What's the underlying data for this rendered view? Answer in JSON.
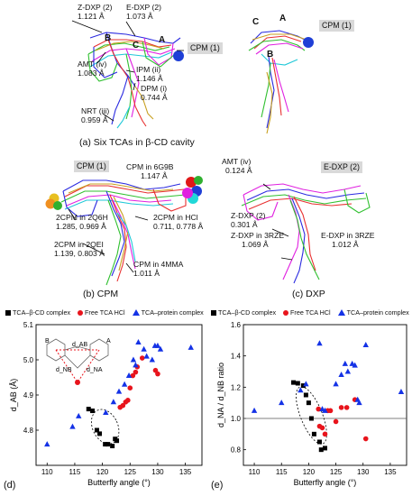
{
  "panel_a": {
    "caption": "(a) Six TCAs in β-CD cavity",
    "labels": {
      "zdxp": "Z-DXP (2)",
      "zdxp_val": "1.121 Å",
      "edxp": "E-DXP (2)",
      "edxp_val": "1.073 Å",
      "cpm_box": "CPM (1)",
      "ring_b": "B",
      "ring_c": "C",
      "ring_a": "A",
      "amt": "AMT (iv)",
      "amt_val": "1.083 Å",
      "ipm": "IPM (ii)",
      "ipm_val": "1.146 Å",
      "dpm": "DPM (i)",
      "dpm_val": "0.744 Å",
      "nrt": "NRT (iii)",
      "nrt_val": "0.959 Å"
    }
  },
  "panel_a2": {
    "cpm_box": "CPM (1)",
    "ring_c": "C",
    "ring_a": "A",
    "ring_b": "B"
  },
  "panel_b": {
    "caption": "(b) CPM",
    "cpm_box": "CPM (1)",
    "cpm6g9b": "CPM in 6G9B",
    "cpm6g9b_val": "1.147 Å",
    "q6h": "2CPM in 2Q6H",
    "q6h_val": "1.285, 0.969 Å",
    "hcl": "2CPM in HCl",
    "hcl_val": "0.711, 0.778 Å",
    "qei": "2CPM in 2QEI",
    "qei_val": "1.139, 0.803 Å",
    "mma": "CPM in 4MMA",
    "mma_val": "1.011 Å"
  },
  "panel_c": {
    "caption": "(c) DXP",
    "amt": "AMT (iv)",
    "amt_val": "0.124 Å",
    "edxp_box": "E-DXP (2)",
    "zdxp": "Z-DXP (2)",
    "zdxp_val": "0.301 Å",
    "zrze": "Z-DXP in 3RZE",
    "zrze_val": "1.069 Å",
    "erze": "E-DXP in 3RZE",
    "erze_val": "1.012 Å"
  },
  "colors": {
    "black_sq": "#000000",
    "red_dot": "#e8141c",
    "blue_tri": "#1432e6",
    "cpm_sphere": "#1f3fd6"
  },
  "chart_data": [
    {
      "type": "scatter",
      "panel": "(d)",
      "xlabel": "Butterfly angle (°)",
      "ylabel": "d_AB (Å)",
      "xlim": [
        108,
        138
      ],
      "ylim": [
        4.7,
        5.1
      ],
      "xticks": [
        "110",
        "115",
        "120",
        "125",
        "130",
        "135"
      ],
      "yticks": [
        "4.8",
        "4.9",
        "5.0",
        "5.1"
      ],
      "legend_position": "top",
      "inset_labels": {
        "b": "B",
        "a": "A",
        "dab": "d_AB",
        "dnb": "d_NB",
        "dna": "d_NA"
      },
      "series": [
        {
          "name": "TCA–β-CD complex",
          "marker": "square",
          "color": "#000000",
          "points": [
            [
              117.5,
              4.86
            ],
            [
              118.2,
              4.855
            ],
            [
              119.0,
              4.8
            ],
            [
              119.5,
              4.79
            ],
            [
              120.5,
              4.76
            ],
            [
              121.0,
              4.76
            ],
            [
              121.8,
              4.755
            ],
            [
              122.3,
              4.775
            ],
            [
              122.6,
              4.77
            ]
          ]
        },
        {
          "name": "Free TCA HCl",
          "marker": "circle",
          "color": "#e8141c",
          "points": [
            [
              123.2,
              4.865
            ],
            [
              123.7,
              4.87
            ],
            [
              124.2,
              4.88
            ],
            [
              124.6,
              4.885
            ],
            [
              125.0,
              4.92
            ],
            [
              125.5,
              4.955
            ],
            [
              126.0,
              4.965
            ],
            [
              126.3,
              4.98
            ],
            [
              127.2,
              5.005
            ],
            [
              129.6,
              4.97
            ],
            [
              130.0,
              4.96
            ]
          ]
        },
        {
          "name": "TCA–protein complex",
          "marker": "triangle",
          "color": "#1432e6",
          "points": [
            [
              110.0,
              4.76
            ],
            [
              114.6,
              4.81
            ],
            [
              115.7,
              4.84
            ],
            [
              120.6,
              4.85
            ],
            [
              122.0,
              4.88
            ],
            [
              123.0,
              4.91
            ],
            [
              124.0,
              4.93
            ],
            [
              124.8,
              4.955
            ],
            [
              125.6,
              5.0
            ],
            [
              126.0,
              4.985
            ],
            [
              126.5,
              5.05
            ],
            [
              127.5,
              5.03
            ],
            [
              128.0,
              5.01
            ],
            [
              129.0,
              5.0
            ],
            [
              129.5,
              5.04
            ],
            [
              130.0,
              5.04
            ],
            [
              130.5,
              5.03
            ],
            [
              136.0,
              5.035
            ]
          ]
        }
      ]
    },
    {
      "type": "scatter",
      "panel": "(e)",
      "xlabel": "Butterfly angle (°)",
      "ylabel": "d_NA / d_NB ratio",
      "xlim": [
        108,
        138
      ],
      "ylim": [
        0.7,
        1.6
      ],
      "xticks": [
        "110",
        "115",
        "120",
        "125",
        "130",
        "135"
      ],
      "yticks": [
        "0.8",
        "1.0",
        "1.2",
        "1.4",
        "1.6"
      ],
      "hline": 1.0,
      "legend_position": "top",
      "series": [
        {
          "name": "TCA–β-CD complex",
          "marker": "square",
          "color": "#000000",
          "points": [
            [
              117.2,
              1.23
            ],
            [
              118.0,
              1.225
            ],
            [
              119.0,
              1.21
            ],
            [
              119.5,
              1.15
            ],
            [
              120.0,
              1.1
            ],
            [
              120.5,
              1.0
            ],
            [
              121.0,
              0.9
            ],
            [
              122.0,
              0.85
            ],
            [
              122.3,
              0.8
            ],
            [
              123.0,
              0.81
            ]
          ]
        },
        {
          "name": "Free TCA HCl",
          "marker": "circle",
          "color": "#e8141c",
          "points": [
            [
              121.8,
              1.06
            ],
            [
              122.0,
              0.95
            ],
            [
              122.5,
              0.94
            ],
            [
              123.0,
              0.9
            ],
            [
              123.5,
              1.05
            ],
            [
              124.0,
              1.05
            ],
            [
              125.0,
              0.98
            ],
            [
              126.0,
              1.07
            ],
            [
              127.0,
              1.07
            ],
            [
              128.5,
              1.12
            ],
            [
              130.5,
              0.87
            ]
          ]
        },
        {
          "name": "TCA–protein complex",
          "marker": "triangle",
          "color": "#1432e6",
          "points": [
            [
              110.0,
              1.05
            ],
            [
              115.0,
              1.1
            ],
            [
              118.5,
              1.18
            ],
            [
              119.5,
              1.22
            ],
            [
              122.0,
              1.48
            ],
            [
              122.5,
              1.06
            ],
            [
              123.0,
              1.05
            ],
            [
              125.0,
              1.22
            ],
            [
              126.0,
              1.28
            ],
            [
              126.7,
              1.35
            ],
            [
              127.2,
              1.3
            ],
            [
              128.0,
              1.35
            ],
            [
              128.5,
              1.34
            ],
            [
              129.0,
              1.12
            ],
            [
              129.3,
              1.1
            ],
            [
              130.5,
              1.47
            ],
            [
              137.0,
              1.17
            ]
          ]
        }
      ]
    }
  ]
}
